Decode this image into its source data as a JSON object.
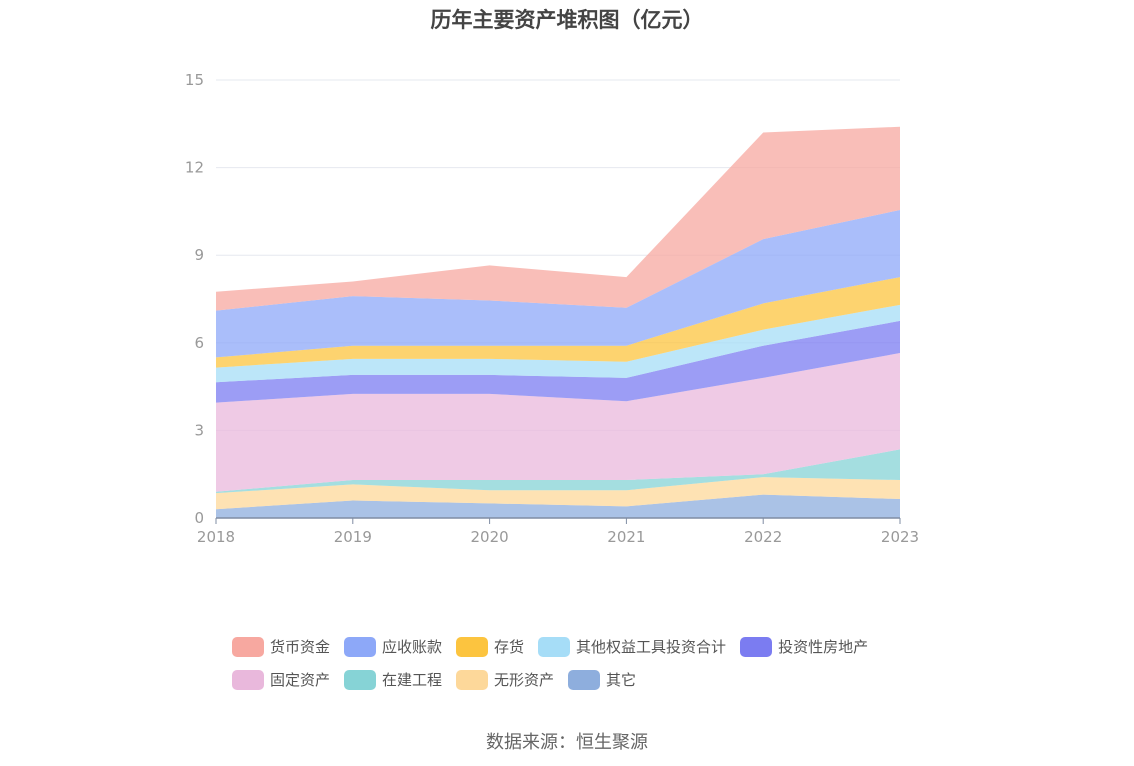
{
  "source": "数据来源：恒生聚源",
  "colors": {
    "货币资金": "#F7A8A0",
    "应收账款": "#8DA8F8",
    "存货": "#FCC43F",
    "其他权益工具投资合计": "#A6DDF7",
    "投资性房地产": "#7B7CF1",
    "固定资产": "#E9B8DC",
    "在建工程": "#86D3D6",
    "无形资产": "#FDD89A",
    "其它": "#8EAEDD"
  },
  "chart_data": {
    "type": "area",
    "stacked": true,
    "title": "历年主要资产堆积图（亿元）",
    "x": [
      "2018",
      "2019",
      "2020",
      "2021",
      "2022",
      "2023"
    ],
    "ylim": [
      0,
      15
    ],
    "yticks": [
      "0",
      "3",
      "6",
      "9",
      "12",
      "15"
    ],
    "grid": true,
    "legend_position": "bottom",
    "series": [
      {
        "name": "其它",
        "values": [
          0.3,
          0.6,
          0.5,
          0.4,
          0.8,
          0.65
        ]
      },
      {
        "name": "无形资产",
        "values": [
          0.55,
          0.55,
          0.45,
          0.55,
          0.6,
          0.65
        ]
      },
      {
        "name": "在建工程",
        "values": [
          0.05,
          0.15,
          0.35,
          0.35,
          0.1,
          1.05
        ]
      },
      {
        "name": "固定资产",
        "values": [
          3.05,
          2.95,
          2.95,
          2.7,
          3.3,
          3.3
        ]
      },
      {
        "name": "投资性房地产",
        "values": [
          0.7,
          0.65,
          0.65,
          0.8,
          1.1,
          1.1
        ]
      },
      {
        "name": "其他权益工具投资合计",
        "values": [
          0.5,
          0.55,
          0.55,
          0.55,
          0.55,
          0.55
        ]
      },
      {
        "name": "存货",
        "values": [
          0.35,
          0.45,
          0.45,
          0.55,
          0.9,
          0.95
        ]
      },
      {
        "name": "应收账款",
        "values": [
          1.6,
          1.7,
          1.55,
          1.3,
          2.2,
          2.3
        ]
      },
      {
        "name": "货币资金",
        "values": [
          0.65,
          0.5,
          1.2,
          1.05,
          3.65,
          2.85
        ]
      }
    ],
    "legend_order": [
      "货币资金",
      "应收账款",
      "存货",
      "其他权益工具投资合计",
      "投资性房地产",
      "固定资产",
      "在建工程",
      "无形资产",
      "其它"
    ]
  }
}
